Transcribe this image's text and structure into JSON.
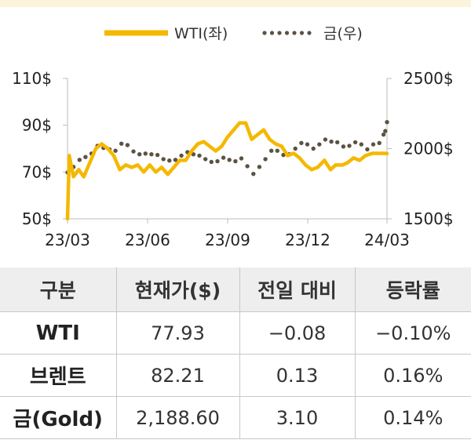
{
  "chart_data": {
    "type": "line",
    "legend": [
      "WTI(좌)",
      "금(우)"
    ],
    "legend_position": "top-center",
    "x_ticks": [
      "23/03",
      "23/06",
      "23/09",
      "23/12",
      "24/03"
    ],
    "y_left_ticks": [
      "110$",
      "90$",
      "70$",
      "50$"
    ],
    "y_right_ticks": [
      "2500$",
      "2000$",
      "1500$"
    ],
    "y_left_range": [
      50,
      110
    ],
    "y_right_range": [
      1500,
      2500
    ],
    "colors": {
      "wti": "#f5b800",
      "gold": "#5c5244"
    },
    "series": [
      {
        "name": "WTI(좌)",
        "axis": "left",
        "style": "solid-line",
        "x": [
          "2023-03-01",
          "2023-03-03",
          "2023-03-08",
          "2023-03-14",
          "2023-03-20",
          "2023-03-27",
          "2023-04-03",
          "2023-04-10",
          "2023-04-17",
          "2023-04-24",
          "2023-05-01",
          "2023-05-08",
          "2023-05-15",
          "2023-05-22",
          "2023-05-29",
          "2023-06-05",
          "2023-06-12",
          "2023-06-19",
          "2023-06-26",
          "2023-07-03",
          "2023-07-10",
          "2023-07-17",
          "2023-07-24",
          "2023-07-31",
          "2023-08-07",
          "2023-08-14",
          "2023-08-21",
          "2023-08-28",
          "2023-09-04",
          "2023-09-11",
          "2023-09-18",
          "2023-09-25",
          "2023-10-02",
          "2023-10-09",
          "2023-10-16",
          "2023-10-23",
          "2023-10-30",
          "2023-11-06",
          "2023-11-13",
          "2023-11-20",
          "2023-11-27",
          "2023-12-04",
          "2023-12-11",
          "2023-12-18",
          "2023-12-26",
          "2024-01-02",
          "2024-01-08",
          "2024-01-16",
          "2024-01-22",
          "2024-01-29",
          "2024-02-05",
          "2024-02-12",
          "2024-02-20",
          "2024-02-26",
          "2024-03-04",
          "2024-03-08"
        ],
        "values": [
          50,
          77,
          68,
          71,
          68,
          74,
          80,
          82,
          80,
          77,
          71,
          73,
          72,
          73,
          70,
          73,
          70,
          72,
          69,
          72,
          75,
          75,
          79,
          82,
          83,
          81,
          79,
          81,
          85,
          88,
          91,
          91,
          84,
          86,
          88,
          84,
          82,
          81,
          77,
          78,
          76,
          73,
          71,
          72,
          75,
          71,
          73,
          73,
          74,
          76,
          75,
          77,
          78,
          78,
          78,
          77.93
        ]
      },
      {
        "name": "금(우)",
        "axis": "right",
        "style": "dotted",
        "x": [
          "2023-03-01",
          "2023-03-08",
          "2023-03-15",
          "2023-03-22",
          "2023-03-29",
          "2023-04-05",
          "2023-04-12",
          "2023-04-19",
          "2023-04-26",
          "2023-05-03",
          "2023-05-10",
          "2023-05-17",
          "2023-05-24",
          "2023-05-31",
          "2023-06-07",
          "2023-06-14",
          "2023-06-21",
          "2023-06-28",
          "2023-07-05",
          "2023-07-12",
          "2023-07-19",
          "2023-07-26",
          "2023-08-02",
          "2023-08-09",
          "2023-08-16",
          "2023-08-23",
          "2023-08-30",
          "2023-09-06",
          "2023-09-13",
          "2023-09-20",
          "2023-09-27",
          "2023-10-04",
          "2023-10-11",
          "2023-10-18",
          "2023-10-25",
          "2023-11-01",
          "2023-11-08",
          "2023-11-15",
          "2023-11-22",
          "2023-11-29",
          "2023-12-06",
          "2023-12-13",
          "2023-12-20",
          "2023-12-27",
          "2024-01-03",
          "2024-01-10",
          "2024-01-17",
          "2024-01-24",
          "2024-01-31",
          "2024-02-07",
          "2024-02-14",
          "2024-02-21",
          "2024-02-28",
          "2024-03-04",
          "2024-03-06",
          "2024-03-08"
        ],
        "values": [
          1830,
          1870,
          1920,
          1940,
          1965,
          2020,
          2005,
          1995,
          1985,
          2035,
          2025,
          1980,
          1960,
          1965,
          1960,
          1955,
          1925,
          1915,
          1920,
          1950,
          1975,
          1960,
          1950,
          1925,
          1905,
          1910,
          1935,
          1920,
          1910,
          1930,
          1875,
          1820,
          1870,
          1925,
          1985,
          1985,
          1955,
          1960,
          2000,
          2040,
          2030,
          2000,
          2030,
          2065,
          2050,
          2045,
          2015,
          2020,
          2045,
          2030,
          1995,
          2030,
          2040,
          2100,
          2125,
          2188.6
        ]
      }
    ]
  },
  "table": {
    "headers": [
      "구분",
      "현재가($)",
      "전일 대비",
      "등락률"
    ],
    "rows": [
      [
        "WTI",
        "77.93",
        "−0.08",
        "−0.10%"
      ],
      [
        "브렌트",
        "82.21",
        "0.13",
        "0.16%"
      ],
      [
        "금(Gold)",
        "2,188.60",
        "3.10",
        "0.14%"
      ]
    ]
  }
}
